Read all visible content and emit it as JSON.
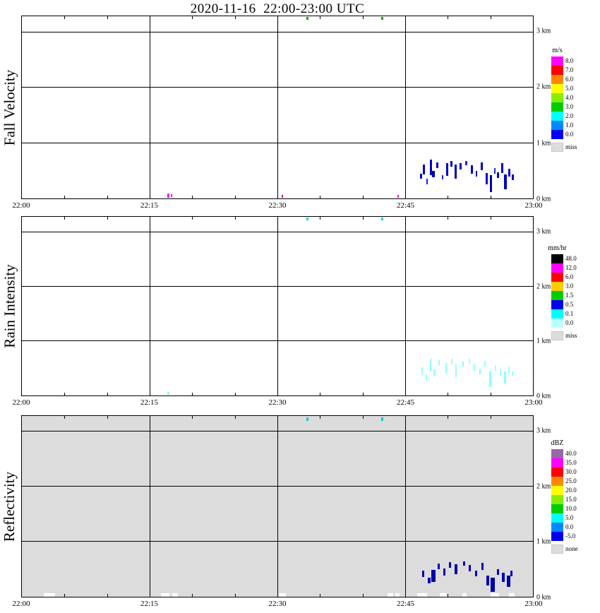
{
  "title": "2020-11-16  22:00-23:00 UTC",
  "chart_data": [
    {
      "type": "heatmap",
      "ylabel": "Fall Velocity",
      "x_range_minutes": [
        0,
        60
      ],
      "y_range_km": [
        0,
        3.28
      ],
      "x_ticks": [
        {
          "min": 0,
          "label": "22:00"
        },
        {
          "min": 15,
          "label": "22:15"
        },
        {
          "min": 30,
          "label": "22:30"
        },
        {
          "min": 45,
          "label": "22:45"
        },
        {
          "min": 60,
          "label": "23:00"
        }
      ],
      "y_ticks": [
        {
          "km": 3,
          "label": "3 km"
        },
        {
          "km": 2,
          "label": "2 km"
        },
        {
          "km": 1,
          "label": "1 km"
        },
        {
          "km": 0,
          "label": "0 km"
        }
      ],
      "x_gridlines_min": [
        15,
        30,
        45
      ],
      "y_gridlines_km": [
        1,
        2,
        3
      ],
      "background": "#ffffff",
      "colorbar": {
        "title": "m/s",
        "entries": [
          {
            "label": "8.0",
            "color": "#ff00ff"
          },
          {
            "label": "7.0",
            "color": "#ff0000"
          },
          {
            "label": "6.0",
            "color": "#ff8800"
          },
          {
            "label": "5.0",
            "color": "#ffff00"
          },
          {
            "label": "4.0",
            "color": "#88ee00"
          },
          {
            "label": "3.0",
            "color": "#00cc00"
          },
          {
            "label": "2.0",
            "color": "#00ffff"
          },
          {
            "label": "1.0",
            "color": "#0088ff"
          },
          {
            "label": "0.0",
            "color": "#0000ee"
          }
        ],
        "missing": {
          "label": "miss",
          "color": "#dcdcdc"
        }
      },
      "points": [
        [
          33.5,
          3.24,
          0.05,
          3,
          "#00aa00"
        ],
        [
          42.3,
          3.24,
          0.05,
          3,
          "#00aa00"
        ],
        [
          17.2,
          0.05,
          0.08,
          3,
          "#ff00ff"
        ],
        [
          17.6,
          0.05,
          0.06,
          2,
          "#ff00ff"
        ],
        [
          30.6,
          0.04,
          0.06,
          2,
          "#cc00cc"
        ],
        [
          44.2,
          0.04,
          0.06,
          2,
          "#ff00ff"
        ],
        [
          46.9,
          0.4,
          0.1,
          3,
          "#0000cc"
        ],
        [
          47.2,
          0.52,
          0.18,
          3,
          "#0000cc"
        ],
        [
          47.6,
          0.3,
          0.1,
          2,
          "#2222dd"
        ],
        [
          48.0,
          0.56,
          0.28,
          3,
          "#0000cc"
        ],
        [
          48.3,
          0.44,
          0.12,
          4,
          "#0000bb"
        ],
        [
          48.8,
          0.6,
          0.1,
          3,
          "#0000cc"
        ],
        [
          49.4,
          0.38,
          0.08,
          2,
          "#2222dd"
        ],
        [
          49.9,
          0.52,
          0.22,
          3,
          "#0000cc"
        ],
        [
          50.4,
          0.62,
          0.1,
          3,
          "#0000cc"
        ],
        [
          50.9,
          0.48,
          0.26,
          3,
          "#0000bb"
        ],
        [
          51.5,
          0.58,
          0.12,
          3,
          "#0000cc"
        ],
        [
          52.2,
          0.64,
          0.08,
          3,
          "#2222dd"
        ],
        [
          52.8,
          0.52,
          0.16,
          3,
          "#0000cc"
        ],
        [
          53.4,
          0.44,
          0.1,
          2,
          "#0000cc"
        ],
        [
          54.0,
          0.58,
          0.14,
          3,
          "#0000bb"
        ],
        [
          54.6,
          0.36,
          0.2,
          3,
          "#0000cc"
        ],
        [
          55.1,
          0.27,
          0.3,
          3,
          "#0000bb"
        ],
        [
          55.5,
          0.5,
          0.1,
          2,
          "#2222dd"
        ],
        [
          55.9,
          0.42,
          0.1,
          3,
          "#0000cc"
        ],
        [
          56.4,
          0.55,
          0.18,
          3,
          "#0000cc"
        ],
        [
          56.8,
          0.3,
          0.26,
          4,
          "#0000bb"
        ],
        [
          57.2,
          0.47,
          0.14,
          3,
          "#0000cc"
        ],
        [
          57.6,
          0.38,
          0.1,
          3,
          "#0000cc"
        ]
      ]
    },
    {
      "type": "heatmap",
      "ylabel": "Rain Intensity",
      "x_range_minutes": [
        0,
        60
      ],
      "y_range_km": [
        0,
        3.28
      ],
      "x_ticks": [
        {
          "min": 0,
          "label": "22:00"
        },
        {
          "min": 15,
          "label": "22:15"
        },
        {
          "min": 30,
          "label": "22:30"
        },
        {
          "min": 45,
          "label": "22:45"
        },
        {
          "min": 60,
          "label": "23:00"
        }
      ],
      "y_ticks": [
        {
          "km": 3,
          "label": "3 km"
        },
        {
          "km": 2,
          "label": "2 km"
        },
        {
          "km": 1,
          "label": "1 km"
        },
        {
          "km": 0,
          "label": "0 km"
        }
      ],
      "x_gridlines_min": [
        15,
        30,
        45
      ],
      "y_gridlines_km": [
        1,
        2,
        3
      ],
      "background": "#ffffff",
      "colorbar": {
        "title": "mm/hr",
        "entries": [
          {
            "label": "48.0",
            "color": "#000000"
          },
          {
            "label": "12.0",
            "color": "#ff00ff"
          },
          {
            "label": "6.0",
            "color": "#ff0000"
          },
          {
            "label": "3.0",
            "color": "#ffcc00"
          },
          {
            "label": "1.5",
            "color": "#00cc00"
          },
          {
            "label": "0.5",
            "color": "#0000ee"
          },
          {
            "label": "0.1",
            "color": "#00ffff"
          },
          {
            "label": "0.0",
            "color": "#bbffff"
          }
        ],
        "missing": {
          "label": "miss",
          "color": "#dcdcdc"
        }
      },
      "points": [
        [
          33.5,
          3.24,
          0.05,
          3,
          "#00dddd"
        ],
        [
          42.3,
          3.24,
          0.05,
          3,
          "#00dddd"
        ],
        [
          17.2,
          0.04,
          0.06,
          3,
          "#88ffff"
        ],
        [
          47.0,
          0.45,
          0.14,
          2,
          "#99ffff"
        ],
        [
          47.5,
          0.32,
          0.1,
          2,
          "#99ffff"
        ],
        [
          48.0,
          0.56,
          0.24,
          2,
          "#88ffff"
        ],
        [
          48.4,
          0.42,
          0.12,
          3,
          "#99ffff"
        ],
        [
          49.0,
          0.6,
          0.1,
          2,
          "#99ffff"
        ],
        [
          49.8,
          0.5,
          0.2,
          2,
          "#88ffff"
        ],
        [
          50.5,
          0.62,
          0.1,
          2,
          "#99ffff"
        ],
        [
          51.0,
          0.46,
          0.24,
          2,
          "#99ffff"
        ],
        [
          51.8,
          0.57,
          0.1,
          2,
          "#88ffff"
        ],
        [
          52.5,
          0.63,
          0.08,
          2,
          "#99ffff"
        ],
        [
          53.1,
          0.52,
          0.14,
          2,
          "#99ffff"
        ],
        [
          53.8,
          0.44,
          0.1,
          2,
          "#88ffff"
        ],
        [
          54.4,
          0.58,
          0.12,
          2,
          "#99ffff"
        ],
        [
          55.0,
          0.3,
          0.28,
          3,
          "#88ffff"
        ],
        [
          55.6,
          0.5,
          0.1,
          2,
          "#99ffff"
        ],
        [
          56.2,
          0.42,
          0.12,
          2,
          "#99ffff"
        ],
        [
          56.7,
          0.33,
          0.22,
          3,
          "#88ffff"
        ],
        [
          57.2,
          0.47,
          0.12,
          2,
          "#99ffff"
        ],
        [
          57.6,
          0.4,
          0.08,
          2,
          "#99ffff"
        ]
      ]
    },
    {
      "type": "heatmap",
      "ylabel": "Reflectivity",
      "x_range_minutes": [
        0,
        60
      ],
      "y_range_km": [
        0,
        3.28
      ],
      "x_ticks": [
        {
          "min": 0,
          "label": "22:00"
        },
        {
          "min": 15,
          "label": "22:15"
        },
        {
          "min": 30,
          "label": "22:30"
        },
        {
          "min": 45,
          "label": "22:45"
        },
        {
          "min": 60,
          "label": "23:00"
        }
      ],
      "y_ticks": [
        {
          "km": 3,
          "label": "3 km"
        },
        {
          "km": 2,
          "label": "2 km"
        },
        {
          "km": 1,
          "label": "1 km"
        },
        {
          "km": 0,
          "label": "0 km"
        }
      ],
      "x_gridlines_min": [
        15,
        30,
        45
      ],
      "y_gridlines_km": [
        1,
        2,
        3
      ],
      "background": "#dcdcdc",
      "colorbar": {
        "title": "dBZ",
        "entries": [
          {
            "label": "40.0",
            "color": "#9966aa"
          },
          {
            "label": "35.0",
            "color": "#ff00ff"
          },
          {
            "label": "30.0",
            "color": "#ff0000"
          },
          {
            "label": "25.0",
            "color": "#ff8800"
          },
          {
            "label": "20.0",
            "color": "#ffff00"
          },
          {
            "label": "15.0",
            "color": "#88ee00"
          },
          {
            "label": "10.0",
            "color": "#00cc00"
          },
          {
            "label": "5.0",
            "color": "#00ffff"
          },
          {
            "label": "0.0",
            "color": "#0088ff"
          },
          {
            "label": "-5.0",
            "color": "#0000ee"
          }
        ],
        "missing": {
          "label": "none",
          "color": "#dcdcdc"
        }
      },
      "points": [
        [
          33.5,
          3.22,
          0.06,
          3,
          "#00cccc"
        ],
        [
          42.3,
          3.22,
          0.06,
          3,
          "#00cccc"
        ],
        [
          47.1,
          0.42,
          0.12,
          3,
          "#0000bb"
        ],
        [
          47.8,
          0.3,
          0.1,
          4,
          "#0000bb"
        ],
        [
          48.3,
          0.38,
          0.22,
          6,
          "#0000aa"
        ],
        [
          48.9,
          0.55,
          0.1,
          3,
          "#0000bb"
        ],
        [
          49.6,
          0.45,
          0.12,
          3,
          "#0000bb"
        ],
        [
          50.3,
          0.58,
          0.1,
          3,
          "#0000bb"
        ],
        [
          51.0,
          0.5,
          0.18,
          4,
          "#0000aa"
        ],
        [
          51.9,
          0.6,
          0.08,
          3,
          "#0000bb"
        ],
        [
          52.6,
          0.52,
          0.12,
          3,
          "#0000bb"
        ],
        [
          53.3,
          0.42,
          0.1,
          3,
          "#0000bb"
        ],
        [
          54.1,
          0.55,
          0.12,
          3,
          "#0000bb"
        ],
        [
          54.7,
          0.3,
          0.18,
          4,
          "#0000aa"
        ],
        [
          55.3,
          0.22,
          0.26,
          6,
          "#0000aa"
        ],
        [
          55.9,
          0.45,
          0.1,
          3,
          "#0000bb"
        ],
        [
          56.5,
          0.35,
          0.16,
          4,
          "#0000bb"
        ],
        [
          57.1,
          0.28,
          0.2,
          5,
          "#0000aa"
        ],
        [
          57.5,
          0.42,
          0.1,
          3,
          "#0000bb"
        ],
        [
          3.2,
          0.035,
          0.07,
          16,
          "#ffffff"
        ],
        [
          16.8,
          0.035,
          0.07,
          12,
          "#ffffff"
        ],
        [
          18.0,
          0.03,
          0.06,
          8,
          "#ffffff"
        ],
        [
          30.6,
          0.035,
          0.07,
          10,
          "#ffffff"
        ],
        [
          43.3,
          0.03,
          0.06,
          8,
          "#ffffff"
        ],
        [
          44.1,
          0.03,
          0.06,
          6,
          "#ffffff"
        ],
        [
          47.0,
          0.035,
          0.07,
          14,
          "#ffffff"
        ],
        [
          49.5,
          0.03,
          0.06,
          10,
          "#ffffff"
        ],
        [
          52.0,
          0.03,
          0.06,
          6,
          "#ffffff"
        ],
        [
          55.5,
          0.035,
          0.07,
          12,
          "#ffffff"
        ],
        [
          57.5,
          0.03,
          0.06,
          8,
          "#ffffff"
        ]
      ]
    }
  ]
}
